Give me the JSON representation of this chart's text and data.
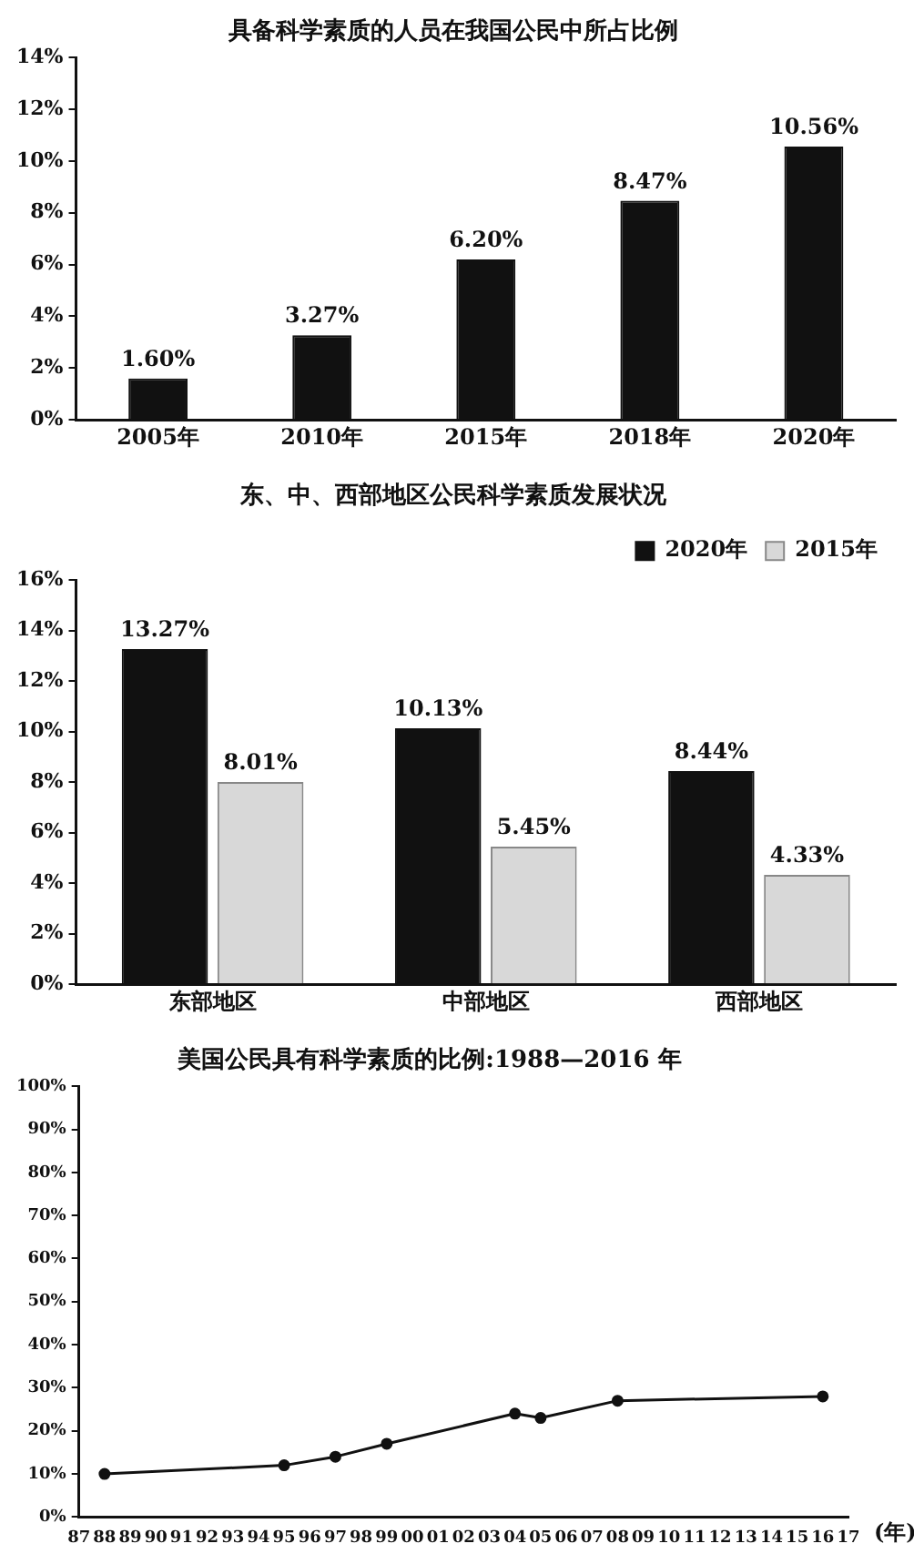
{
  "chart_data": [
    {
      "type": "bar",
      "title": "具备科学素质的人员在我国公民中所占比例",
      "categories": [
        "2005年",
        "2010年",
        "2015年",
        "2018年",
        "2020年"
      ],
      "values": [
        1.6,
        3.27,
        6.2,
        8.47,
        10.56
      ],
      "color": "#111111",
      "value_labels": [
        "1.60%",
        "3.27%",
        "6.20%",
        "8.47%",
        "10.56%"
      ],
      "ylim": [
        0,
        14
      ],
      "yticks": [
        {
          "value": 0,
          "label": "0%"
        },
        {
          "value": 2,
          "label": "2%"
        },
        {
          "value": 4,
          "label": "4%"
        },
        {
          "value": 6,
          "label": "6%"
        },
        {
          "value": 8,
          "label": "8%"
        },
        {
          "value": 10,
          "label": "10%"
        },
        {
          "value": 12,
          "label": "12%"
        },
        {
          "value": 14,
          "label": "14%"
        }
      ],
      "grid": false
    },
    {
      "type": "bar",
      "title": "东、中、西部地区公民科学素质发展状况",
      "categories": [
        "东部地区",
        "中部地区",
        "西部地区"
      ],
      "series": [
        {
          "name": "2020年",
          "color": "#111111",
          "values": [
            13.27,
            10.13,
            8.44
          ],
          "value_labels": [
            "13.27%",
            "10.13%",
            "8.44%"
          ]
        },
        {
          "name": "2015年",
          "color": "#d8d8d8",
          "values": [
            8.01,
            5.45,
            4.33
          ],
          "value_labels": [
            "8.01%",
            "5.45%",
            "4.33%"
          ]
        }
      ],
      "ylim": [
        0,
        16
      ],
      "yticks": [
        {
          "value": 0,
          "label": "0%"
        },
        {
          "value": 2,
          "label": "2%"
        },
        {
          "value": 4,
          "label": "4%"
        },
        {
          "value": 6,
          "label": "6%"
        },
        {
          "value": 8,
          "label": "8%"
        },
        {
          "value": 10,
          "label": "10%"
        },
        {
          "value": 12,
          "label": "12%"
        },
        {
          "value": 14,
          "label": "14%"
        },
        {
          "value": 16,
          "label": "16%"
        }
      ],
      "grid": false,
      "legend": "top right"
    },
    {
      "type": "line",
      "title": "美国公民具有科学素质的比例:1988—2016 年",
      "xlabel": "(年)",
      "x": [
        1988,
        1995,
        1997,
        1999,
        2004,
        2005,
        2008,
        2016
      ],
      "values": [
        10,
        12,
        14,
        17,
        24,
        23,
        27,
        28
      ],
      "color": "#111111",
      "marker": "circle",
      "line_style": "solid",
      "xlim": [
        1987,
        2017
      ],
      "xticks": [
        {
          "value": 1987,
          "label": "87"
        },
        {
          "value": 1988,
          "label": "88"
        },
        {
          "value": 1989,
          "label": "89"
        },
        {
          "value": 1990,
          "label": "90"
        },
        {
          "value": 1991,
          "label": "91"
        },
        {
          "value": 1992,
          "label": "92"
        },
        {
          "value": 1993,
          "label": "93"
        },
        {
          "value": 1994,
          "label": "94"
        },
        {
          "value": 1995,
          "label": "95"
        },
        {
          "value": 1996,
          "label": "96"
        },
        {
          "value": 1997,
          "label": "97"
        },
        {
          "value": 1998,
          "label": "98"
        },
        {
          "value": 1999,
          "label": "99"
        },
        {
          "value": 2000,
          "label": "00"
        },
        {
          "value": 2001,
          "label": "01"
        },
        {
          "value": 2002,
          "label": "02"
        },
        {
          "value": 2003,
          "label": "03"
        },
        {
          "value": 2004,
          "label": "04"
        },
        {
          "value": 2005,
          "label": "05"
        },
        {
          "value": 2006,
          "label": "06"
        },
        {
          "value": 2007,
          "label": "07"
        },
        {
          "value": 2008,
          "label": "08"
        },
        {
          "value": 2009,
          "label": "09"
        },
        {
          "value": 2010,
          "label": "10"
        },
        {
          "value": 2011,
          "label": "11"
        },
        {
          "value": 2012,
          "label": "12"
        },
        {
          "value": 2013,
          "label": "13"
        },
        {
          "value": 2014,
          "label": "14"
        },
        {
          "value": 2015,
          "label": "15"
        },
        {
          "value": 2016,
          "label": "16"
        },
        {
          "value": 2017,
          "label": "17"
        }
      ],
      "ylim": [
        0,
        100
      ],
      "yticks": [
        {
          "value": 0,
          "label": "0%"
        },
        {
          "value": 10,
          "label": "10%"
        },
        {
          "value": 20,
          "label": "20%"
        },
        {
          "value": 30,
          "label": "30%"
        },
        {
          "value": 40,
          "label": "40%"
        },
        {
          "value": 50,
          "label": "50%"
        },
        {
          "value": 60,
          "label": "60%"
        },
        {
          "value": 70,
          "label": "70%"
        },
        {
          "value": 80,
          "label": "80%"
        },
        {
          "value": 90,
          "label": "90%"
        },
        {
          "value": 100,
          "label": "100%"
        }
      ],
      "grid": false
    }
  ]
}
